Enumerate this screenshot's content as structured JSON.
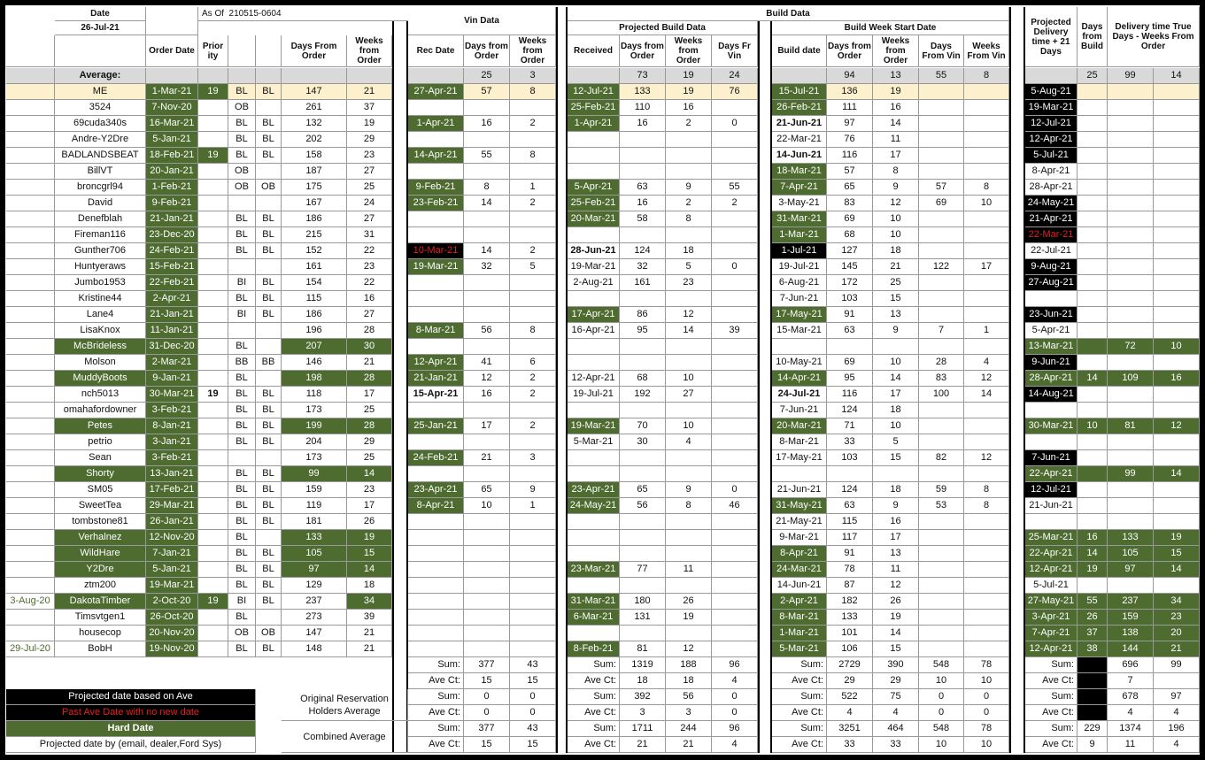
{
  "header": {
    "date_label": "Date",
    "date": "26-Jul-21",
    "as_of": "As Of  210515-0604",
    "vin_data": "Vin Data",
    "build_data": "Build Data",
    "projected_build_data": "Projected Build Data",
    "build_week_start_date": "Build Week Start Date",
    "projected_delivery": "Projected Delivery time + 21 Days",
    "days_from_build": "Days from Build",
    "delivery_true_days": "Delivery time True Days - Weeks From Order"
  },
  "columns": [
    null,
    null,
    "Order Date",
    "Prior ity",
    null,
    null,
    "Days From Order",
    "Weeks from Order",
    "Rec Date",
    "Days from Order",
    "Weeks from Order",
    "Received",
    "Days from Order",
    "Weeks from Order",
    "Days Fr Vin",
    "Build date",
    "Days from Order",
    "Weeks from Order",
    "Days From Vin",
    "Weeks From Vin",
    null,
    null,
    null,
    null
  ],
  "average": [
    null,
    "Average:",
    null,
    null,
    null,
    null,
    null,
    null,
    null,
    25,
    3,
    null,
    73,
    19,
    24,
    null,
    94,
    13,
    55,
    8,
    null,
    25,
    99,
    14
  ],
  "rows": [
    [
      null,
      "ME",
      "1-Mar-21",
      19,
      "BL",
      "BL",
      147,
      21,
      "27-Apr-21",
      57,
      8,
      "12-Jul-21",
      133,
      19,
      76,
      "15-Jul-21",
      136,
      19,
      null,
      null,
      "5-Aug-21",
      null,
      null,
      null
    ],
    [
      null,
      "3524",
      "7-Nov-20",
      null,
      "OB",
      null,
      261,
      37,
      null,
      null,
      null,
      "25-Feb-21",
      110,
      16,
      null,
      "26-Feb-21",
      111,
      16,
      null,
      null,
      "19-Mar-21",
      null,
      null,
      null
    ],
    [
      null,
      "69cuda340s",
      "16-Mar-21",
      null,
      "BL",
      "BL",
      132,
      19,
      "1-Apr-21",
      16,
      2,
      "1-Apr-21",
      16,
      2,
      0,
      "21-Jun-21",
      97,
      14,
      null,
      null,
      "12-Jul-21",
      null,
      null,
      null
    ],
    [
      null,
      "Andre-Y2Dre",
      "5-Jan-21",
      null,
      "BL",
      "BL",
      202,
      29,
      null,
      null,
      null,
      null,
      null,
      null,
      null,
      "22-Mar-21",
      76,
      11,
      null,
      null,
      "12-Apr-21",
      null,
      null,
      null
    ],
    [
      null,
      "BADLANDSBEAT",
      "18-Feb-21",
      19,
      "BL",
      "BL",
      158,
      23,
      "14-Apr-21",
      55,
      8,
      null,
      null,
      null,
      null,
      "14-Jun-21",
      116,
      17,
      null,
      null,
      "5-Jul-21",
      null,
      null,
      null
    ],
    [
      null,
      "BillVT",
      "20-Jan-21",
      null,
      "OB",
      null,
      187,
      27,
      null,
      null,
      null,
      null,
      null,
      null,
      null,
      "18-Mar-21",
      57,
      8,
      null,
      null,
      "8-Apr-21",
      null,
      null,
      null
    ],
    [
      null,
      "broncgrl94",
      "1-Feb-21",
      null,
      "OB",
      "OB",
      175,
      25,
      "9-Feb-21",
      8,
      1,
      "5-Apr-21",
      63,
      9,
      55,
      "7-Apr-21",
      65,
      9,
      57,
      8,
      "28-Apr-21",
      null,
      null,
      null
    ],
    [
      null,
      "David",
      "9-Feb-21",
      null,
      null,
      null,
      167,
      24,
      "23-Feb-21",
      14,
      2,
      "25-Feb-21",
      16,
      2,
      2,
      "3-May-21",
      83,
      12,
      69,
      10,
      "24-May-21",
      null,
      null,
      null
    ],
    [
      null,
      "Denefblah",
      "21-Jan-21",
      null,
      "BL",
      "BL",
      186,
      27,
      null,
      null,
      null,
      "20-Mar-21",
      58,
      8,
      null,
      "31-Mar-21",
      69,
      10,
      null,
      null,
      "21-Apr-21",
      null,
      null,
      null
    ],
    [
      null,
      "Fireman116",
      "23-Dec-20",
      null,
      "BL",
      "BL",
      215,
      31,
      null,
      null,
      null,
      null,
      null,
      null,
      null,
      "1-Mar-21",
      68,
      10,
      null,
      null,
      "22-Mar-21",
      null,
      null,
      null
    ],
    [
      null,
      "Gunther706",
      "24-Feb-21",
      null,
      "BL",
      "BL",
      152,
      22,
      "10-Mar-21",
      14,
      2,
      "28-Jun-21",
      124,
      18,
      null,
      "1-Jul-21",
      127,
      18,
      null,
      null,
      "22-Jul-21",
      null,
      null,
      null
    ],
    [
      null,
      "Huntyeraws",
      "15-Feb-21",
      null,
      null,
      null,
      161,
      23,
      "19-Mar-21",
      32,
      5,
      "19-Mar-21",
      32,
      5,
      0,
      "19-Jul-21",
      145,
      21,
      122,
      17,
      "9-Aug-21",
      null,
      null,
      null
    ],
    [
      null,
      "Jumbo1953",
      "22-Feb-21",
      null,
      "BI",
      "BL",
      154,
      22,
      null,
      null,
      null,
      "2-Aug-21",
      161,
      23,
      null,
      "6-Aug-21",
      172,
      25,
      null,
      null,
      "27-Aug-21",
      null,
      null,
      null
    ],
    [
      null,
      "Kristine44",
      "2-Apr-21",
      null,
      "BL",
      "BL",
      115,
      16,
      null,
      null,
      null,
      null,
      null,
      null,
      null,
      "7-Jun-21",
      103,
      15,
      null,
      null,
      null,
      null,
      null,
      null
    ],
    [
      null,
      "Lane4",
      "21-Jan-21",
      null,
      "BI",
      "BL",
      186,
      27,
      null,
      null,
      null,
      "17-Apr-21",
      86,
      12,
      null,
      "17-May-21",
      91,
      13,
      null,
      null,
      "23-Jun-21",
      null,
      null,
      null
    ],
    [
      null,
      "LisaKnox",
      "11-Jan-21",
      null,
      null,
      null,
      196,
      28,
      "8-Mar-21",
      56,
      8,
      "16-Apr-21",
      95,
      14,
      39,
      "15-Mar-21",
      63,
      9,
      7,
      1,
      "5-Apr-21",
      null,
      null,
      null
    ],
    [
      null,
      "McBrideless",
      "31-Dec-20",
      null,
      "BL",
      null,
      207,
      30,
      null,
      null,
      null,
      null,
      null,
      null,
      null,
      null,
      null,
      null,
      null,
      null,
      "13-Mar-21",
      null,
      72,
      10
    ],
    [
      null,
      "Molson",
      "2-Mar-21",
      null,
      "BB",
      "BB",
      146,
      21,
      "12-Apr-21",
      41,
      6,
      null,
      null,
      null,
      null,
      "10-May-21",
      69,
      10,
      28,
      4,
      "9-Jun-21",
      null,
      null,
      null
    ],
    [
      null,
      "MuddyBoots",
      "9-Jan-21",
      null,
      "BL",
      null,
      198,
      28,
      "21-Jan-21",
      12,
      2,
      "12-Apr-21",
      68,
      10,
      null,
      "14-Apr-21",
      95,
      14,
      83,
      12,
      "28-Apr-21",
      14,
      109,
      16
    ],
    [
      null,
      "nch5013",
      "30-Mar-21",
      19,
      "BL",
      "BL",
      118,
      17,
      "15-Apr-21",
      16,
      2,
      "19-Jul-21",
      192,
      27,
      null,
      "24-Jul-21",
      116,
      17,
      100,
      14,
      "14-Aug-21",
      null,
      null,
      null
    ],
    [
      null,
      "omahafordowner",
      "3-Feb-21",
      null,
      "BL",
      "BL",
      173,
      25,
      null,
      null,
      null,
      null,
      null,
      null,
      null,
      "7-Jun-21",
      124,
      18,
      null,
      null,
      null,
      null,
      null,
      null
    ],
    [
      null,
      "Petes",
      "8-Jan-21",
      null,
      "BL",
      "BL",
      199,
      28,
      "25-Jan-21",
      17,
      2,
      "19-Mar-21",
      70,
      10,
      null,
      "20-Mar-21",
      71,
      10,
      null,
      null,
      "30-Mar-21",
      10,
      81,
      12
    ],
    [
      null,
      "petrio",
      "3-Jan-21",
      null,
      "BL",
      "BL",
      204,
      29,
      null,
      null,
      null,
      "5-Mar-21",
      30,
      4,
      null,
      "8-Mar-21",
      33,
      5,
      null,
      null,
      null,
      null,
      null,
      null
    ],
    [
      null,
      "Sean",
      "3-Feb-21",
      null,
      null,
      null,
      173,
      25,
      "24-Feb-21",
      21,
      3,
      null,
      null,
      null,
      null,
      "17-May-21",
      103,
      15,
      82,
      12,
      "7-Jun-21",
      null,
      null,
      null
    ],
    [
      null,
      "Shorty",
      "13-Jan-21",
      null,
      "BL",
      "BL",
      99,
      14,
      null,
      null,
      null,
      null,
      null,
      null,
      null,
      null,
      null,
      null,
      null,
      null,
      "22-Apr-21",
      null,
      99,
      14
    ],
    [
      null,
      "SM05",
      "17-Feb-21",
      null,
      "BL",
      "BL",
      159,
      23,
      "23-Apr-21",
      65,
      9,
      "23-Apr-21",
      65,
      9,
      0,
      "21-Jun-21",
      124,
      18,
      59,
      8,
      "12-Jul-21",
      null,
      null,
      null
    ],
    [
      null,
      "SweetTea",
      "29-Mar-21",
      null,
      "BL",
      "BL",
      119,
      17,
      "8-Apr-21",
      10,
      1,
      "24-May-21",
      56,
      8,
      46,
      "31-May-21",
      63,
      9,
      53,
      8,
      "21-Jun-21",
      null,
      null,
      null
    ],
    [
      null,
      "tombstone81",
      "26-Jan-21",
      null,
      "BL",
      "BL",
      181,
      26,
      null,
      null,
      null,
      null,
      null,
      null,
      null,
      "21-May-21",
      115,
      16,
      null,
      null,
      null,
      null,
      null,
      null
    ],
    [
      null,
      "Verhalnez",
      "12-Nov-20",
      null,
      "BL",
      null,
      133,
      19,
      null,
      null,
      null,
      null,
      null,
      null,
      null,
      "9-Mar-21",
      117,
      17,
      null,
      null,
      "25-Mar-21",
      16,
      133,
      19
    ],
    [
      null,
      "WildHare",
      "7-Jan-21",
      null,
      "BL",
      "BL",
      105,
      15,
      null,
      null,
      null,
      null,
      null,
      null,
      null,
      "8-Apr-21",
      91,
      13,
      null,
      null,
      "22-Apr-21",
      14,
      105,
      15
    ],
    [
      null,
      "Y2Dre",
      "5-Jan-21",
      null,
      "BL",
      "BL",
      97,
      14,
      null,
      null,
      null,
      "23-Mar-21",
      77,
      11,
      null,
      "24-Mar-21",
      78,
      11,
      null,
      null,
      "12-Apr-21",
      19,
      97,
      14
    ],
    [
      null,
      "ztm200",
      "19-Mar-21",
      null,
      "BL",
      "BL",
      129,
      18,
      null,
      null,
      null,
      null,
      null,
      null,
      null,
      "14-Jun-21",
      87,
      12,
      null,
      null,
      "5-Jul-21",
      null,
      null,
      null
    ],
    [
      "3-Aug-20",
      "DakotaTimber",
      "2-Oct-20",
      19,
      "BI",
      "BL",
      237,
      34,
      null,
      null,
      null,
      "31-Mar-21",
      180,
      26,
      null,
      "2-Apr-21",
      182,
      26,
      null,
      null,
      "27-May-21",
      55,
      237,
      34
    ],
    [
      null,
      "Timsvtgen1",
      "26-Oct-20",
      null,
      "BL",
      null,
      273,
      39,
      null,
      null,
      null,
      "6-Mar-21",
      131,
      19,
      null,
      "8-Mar-21",
      133,
      19,
      null,
      null,
      "3-Apr-21",
      26,
      159,
      23
    ],
    [
      null,
      "housecop",
      "20-Nov-20",
      null,
      "OB",
      "OB",
      147,
      21,
      null,
      null,
      null,
      null,
      null,
      null,
      null,
      "1-Mar-21",
      101,
      14,
      null,
      null,
      "7-Apr-21",
      37,
      138,
      20
    ],
    [
      "29-Jul-20",
      "BobH",
      "19-Nov-20",
      null,
      "BL",
      "BL",
      148,
      21,
      null,
      null,
      null,
      "8-Feb-21",
      81,
      12,
      null,
      "5-Mar-21",
      106,
      15,
      null,
      null,
      "12-Apr-21",
      38,
      144,
      21
    ]
  ],
  "summary": {
    "group_labels": [
      "Original Reservation Holders Average",
      "Combined Average"
    ],
    "rows": [
      [
        "Sum:",
        377,
        43,
        "Sum:",
        1319,
        188,
        96,
        "Sum:",
        2729,
        390,
        548,
        78,
        "Sum:",
        null,
        696,
        99
      ],
      [
        "Ave Ct:",
        15,
        15,
        "Ave Ct:",
        18,
        18,
        4,
        "Ave Ct:",
        29,
        29,
        10,
        10,
        "Ave Ct:",
        null,
        7,
        null
      ],
      [
        "Sum:",
        0,
        0,
        "Sum:",
        392,
        56,
        0,
        "Sum:",
        522,
        75,
        0,
        0,
        "Sum:",
        null,
        678,
        97
      ],
      [
        "Ave Ct:",
        0,
        0,
        "Ave Ct:",
        3,
        3,
        0,
        "Ave Ct:",
        4,
        4,
        0,
        0,
        "Ave Ct:",
        null,
        4,
        4
      ],
      [
        "Sum:",
        377,
        43,
        "Sum:",
        1711,
        244,
        96,
        "Sum:",
        3251,
        464,
        548,
        78,
        "Sum:",
        229,
        1374,
        196
      ],
      [
        "Ave Ct:",
        15,
        15,
        "Ave Ct:",
        21,
        21,
        4,
        "Ave Ct:",
        33,
        33,
        10,
        10,
        "Ave Ct:",
        9,
        11,
        4
      ]
    ]
  },
  "legend": [
    "Projected date based on Ave",
    "Past Ave Date with no new date",
    "Hard Date",
    "Projected date by  (email, dealer,Ford Sys)"
  ]
}
